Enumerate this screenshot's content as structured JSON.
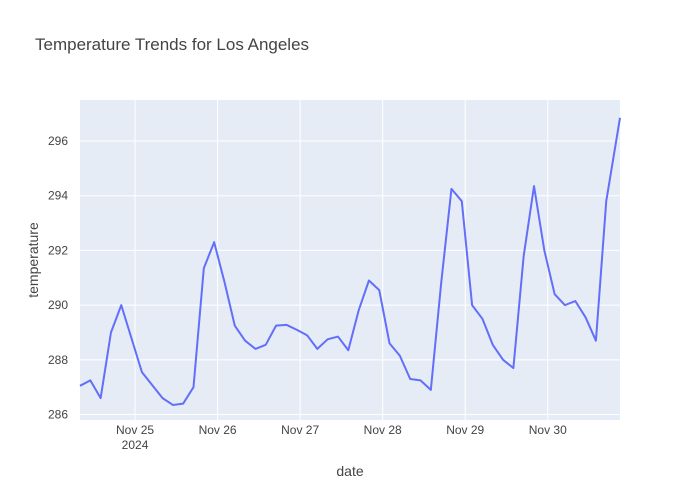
{
  "chart_data": {
    "type": "line",
    "title": "Temperature Trends for Los Angeles",
    "xlabel": "date",
    "ylabel": "temperature",
    "ylim": [
      285.8,
      297.5
    ],
    "xlim": [
      "2024-11-24 08:00",
      "2024-11-30 21:00"
    ],
    "x_ticks": [
      {
        "date": "2024-11-25",
        "label": "Nov 25",
        "sublabel": "2024"
      },
      {
        "date": "2024-11-26",
        "label": "Nov 26"
      },
      {
        "date": "2024-11-27",
        "label": "Nov 27"
      },
      {
        "date": "2024-11-28",
        "label": "Nov 28"
      },
      {
        "date": "2024-11-29",
        "label": "Nov 29"
      },
      {
        "date": "2024-11-30",
        "label": "Nov 30"
      }
    ],
    "y_ticks": [
      286,
      288,
      290,
      292,
      294,
      296
    ],
    "grid": true,
    "line_color": "#636efa",
    "plot_bg": "#e5ecf6",
    "x": [
      "2024-11-24 08:00",
      "2024-11-24 11:00",
      "2024-11-24 14:00",
      "2024-11-24 17:00",
      "2024-11-24 20:00",
      "2024-11-25 02:00",
      "2024-11-25 08:00",
      "2024-11-25 11:00",
      "2024-11-25 14:00",
      "2024-11-25 17:00",
      "2024-11-25 20:00",
      "2024-11-25 23:00",
      "2024-11-26 02:00",
      "2024-11-26 05:00",
      "2024-11-26 08:00",
      "2024-11-26 11:00",
      "2024-11-26 14:00",
      "2024-11-26 17:00",
      "2024-11-26 20:00",
      "2024-11-26 23:00",
      "2024-11-27 02:00",
      "2024-11-27 05:00",
      "2024-11-27 08:00",
      "2024-11-27 11:00",
      "2024-11-27 14:00",
      "2024-11-27 17:00",
      "2024-11-27 20:00",
      "2024-11-27 23:00",
      "2024-11-28 02:00",
      "2024-11-28 05:00",
      "2024-11-28 08:00",
      "2024-11-28 11:00",
      "2024-11-28 14:00",
      "2024-11-28 17:00",
      "2024-11-28 20:00",
      "2024-11-28 23:00",
      "2024-11-29 02:00",
      "2024-11-29 05:00",
      "2024-11-29 08:00",
      "2024-11-29 11:00",
      "2024-11-29 14:00",
      "2024-11-29 17:00",
      "2024-11-29 20:00",
      "2024-11-29 23:00",
      "2024-11-30 02:00",
      "2024-11-30 05:00",
      "2024-11-30 08:00",
      "2024-11-30 11:00",
      "2024-11-30 14:00",
      "2024-11-30 17:00",
      "2024-11-30 21:00"
    ],
    "series": [
      {
        "values": [
          287.05,
          287.25,
          286.6,
          289.0,
          290.0,
          287.55,
          286.6,
          286.35,
          286.4,
          287.0,
          291.35,
          292.3,
          290.85,
          289.25,
          288.7,
          288.4,
          288.55,
          289.25,
          289.28,
          289.1,
          288.9,
          288.4,
          288.75,
          288.85,
          288.35,
          289.8,
          290.9,
          290.55,
          288.6,
          288.15,
          287.3,
          287.25,
          286.9,
          290.8,
          294.25,
          293.8,
          290.0,
          289.5,
          288.55,
          288.0,
          287.7,
          291.8,
          294.35,
          292.0,
          290.4,
          290.0,
          290.15,
          289.55,
          288.7,
          293.8,
          296.85
        ]
      }
    ]
  }
}
